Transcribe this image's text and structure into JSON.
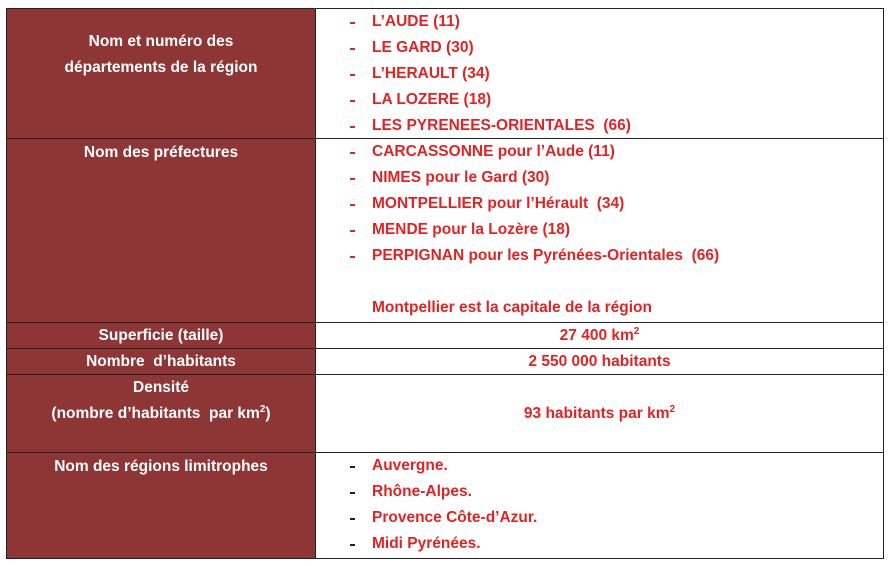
{
  "table": {
    "rows": [
      {
        "label": [
          "Nom et numéro des",
          "départements de la région"
        ],
        "items": [
          "L’AUDE (11)",
          "LE GARD (30)",
          "L’HERAULT (34)",
          "LA LOZERE (18)",
          "LES PYRENEES-ORIENTALES  (66)"
        ]
      },
      {
        "label": [
          "Nom des préfectures"
        ],
        "items": [
          "CARCASSONNE pour l’Aude (11)",
          "NIMES pour le Gard (30)",
          "MONTPELLIER pour l’Hérault  (34)",
          "MENDE pour la Lozère (18)",
          "PERPIGNAN pour les Pyrénées-Orientales  (66)"
        ],
        "note": "Montpellier est la capitale de la région"
      },
      {
        "label": [
          "Superficie (taille)"
        ],
        "value": {
          "before": "27 400 km",
          "sup": "2",
          "after": ""
        }
      },
      {
        "label": [
          "Nombre  d’habitants"
        ],
        "value": {
          "before": "2 550 000 habitants",
          "sup": "",
          "after": ""
        }
      },
      {
        "label": [
          "Densité",
          {
            "before": "(nombre d’habitants  par km",
            "sup": "2",
            "after": ")"
          }
        ],
        "value": {
          "before": "93 habitants par km",
          "sup": "2",
          "after": ""
        }
      },
      {
        "label": [
          "Nom des régions limitrophes"
        ],
        "items": [
          "Auvergne.",
          "Rhône-Alpes.",
          "Provence Côte-d’Azur.",
          "Midi Pyrénées."
        ]
      }
    ]
  }
}
